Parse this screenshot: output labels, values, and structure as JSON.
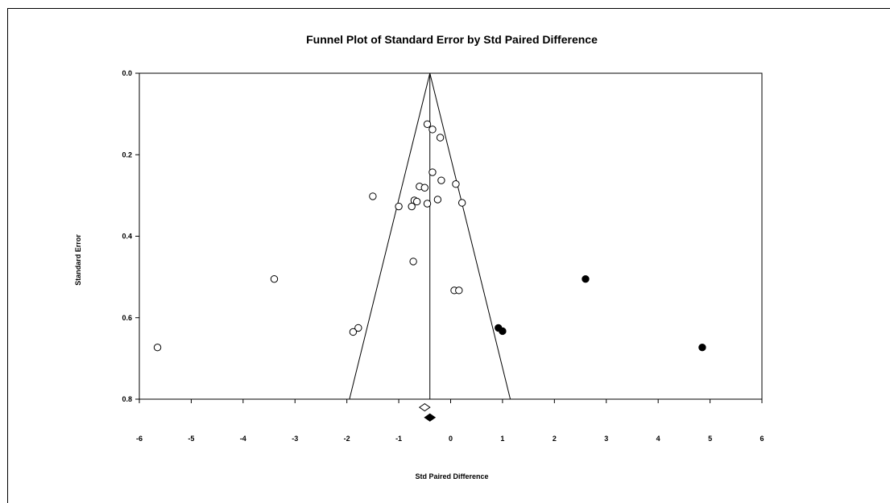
{
  "chart_data": {
    "type": "scatter",
    "title": "Funnel Plot of Standard Error by Std Paired Difference",
    "xlabel": "Std Paired Difference",
    "ylabel": "Standard Error",
    "xlim": [
      -6,
      6
    ],
    "ylim": [
      0.0,
      0.8
    ],
    "y_inverted": true,
    "xticks": [
      "-6",
      "-5",
      "-4",
      "-3",
      "-2",
      "-1",
      "0",
      "1",
      "2",
      "3",
      "4",
      "5",
      "6"
    ],
    "yticks": [
      "0.0",
      "0.2",
      "0.4",
      "0.6",
      "0.8"
    ],
    "grid": false,
    "legend": "none",
    "funnel": {
      "center": -0.4,
      "apex_se": 0.0,
      "bottom_se": 0.8,
      "bottom_left": -1.95,
      "bottom_right": 1.15
    },
    "series": [
      {
        "marker": "open-circle",
        "points": [
          {
            "x": -0.45,
            "y": 0.125
          },
          {
            "x": -0.35,
            "y": 0.138
          },
          {
            "x": -0.2,
            "y": 0.158
          },
          {
            "x": -0.35,
            "y": 0.243
          },
          {
            "x": -0.18,
            "y": 0.263
          },
          {
            "x": 0.1,
            "y": 0.272
          },
          {
            "x": -0.6,
            "y": 0.278
          },
          {
            "x": -0.5,
            "y": 0.281
          },
          {
            "x": -1.5,
            "y": 0.302
          },
          {
            "x": -0.25,
            "y": 0.31
          },
          {
            "x": -0.7,
            "y": 0.312
          },
          {
            "x": -0.65,
            "y": 0.315
          },
          {
            "x": -0.45,
            "y": 0.32
          },
          {
            "x": 0.22,
            "y": 0.318
          },
          {
            "x": -1.0,
            "y": 0.327
          },
          {
            "x": -0.75,
            "y": 0.327
          },
          {
            "x": -0.72,
            "y": 0.462
          },
          {
            "x": -3.4,
            "y": 0.505
          },
          {
            "x": 0.07,
            "y": 0.533
          },
          {
            "x": 0.16,
            "y": 0.533
          },
          {
            "x": -1.78,
            "y": 0.625
          },
          {
            "x": -1.88,
            "y": 0.635
          },
          {
            "x": -5.65,
            "y": 0.673
          }
        ]
      },
      {
        "marker": "filled-circle",
        "points": [
          {
            "x": 2.6,
            "y": 0.505
          },
          {
            "x": 0.92,
            "y": 0.625
          },
          {
            "x": 1.0,
            "y": 0.633
          },
          {
            "x": 4.85,
            "y": 0.673
          }
        ]
      }
    ],
    "summary_diamonds": [
      {
        "marker": "open-diamond",
        "x": -0.5,
        "y": 0.82
      },
      {
        "marker": "filled-diamond",
        "x": -0.4,
        "y": 0.845
      }
    ]
  }
}
